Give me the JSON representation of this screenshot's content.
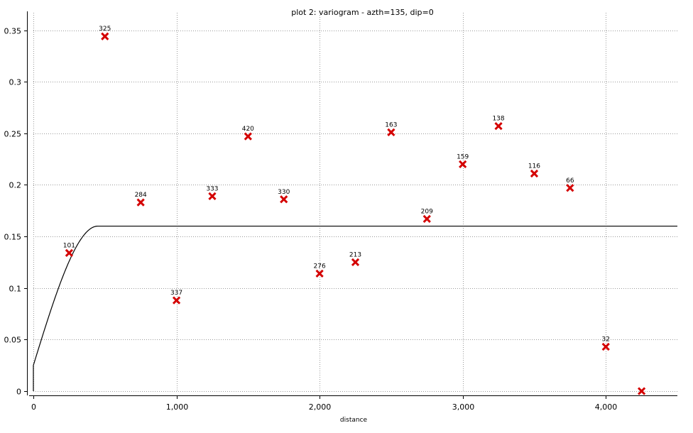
{
  "chart_data": {
    "type": "scatter",
    "title": "plot 2:  variogram - azth=135, dip=0",
    "xlabel": "distance",
    "ylabel": "",
    "xlim": [
      0,
      4500
    ],
    "ylim": [
      0,
      0.36
    ],
    "grid": true,
    "x_ticks": [
      0,
      1000,
      2000,
      3000,
      4000
    ],
    "x_tick_labels": [
      "0",
      "1,000",
      "2,000",
      "3,000",
      "4,000"
    ],
    "y_ticks": [
      0,
      0.05,
      0.1,
      0.15,
      0.2,
      0.25,
      0.3,
      0.35
    ],
    "y_tick_labels": [
      "0",
      "0.05",
      "0.1",
      "0.15",
      "0.2",
      "0.25",
      "0.3",
      "0.35"
    ],
    "series": [
      {
        "marker": "x",
        "color": "#d40000",
        "points": [
          {
            "x": 250,
            "y": 0.134,
            "label": "101"
          },
          {
            "x": 500,
            "y": 0.344,
            "label": "325"
          },
          {
            "x": 750,
            "y": 0.183,
            "label": "284"
          },
          {
            "x": 1000,
            "y": 0.088,
            "label": "337"
          },
          {
            "x": 1250,
            "y": 0.189,
            "label": "333"
          },
          {
            "x": 1500,
            "y": 0.247,
            "label": "420"
          },
          {
            "x": 1750,
            "y": 0.186,
            "label": "330"
          },
          {
            "x": 2000,
            "y": 0.114,
            "label": "276"
          },
          {
            "x": 2250,
            "y": 0.125,
            "label": "213"
          },
          {
            "x": 2500,
            "y": 0.251,
            "label": "163"
          },
          {
            "x": 2750,
            "y": 0.167,
            "label": "209"
          },
          {
            "x": 3000,
            "y": 0.22,
            "label": "159"
          },
          {
            "x": 3250,
            "y": 0.257,
            "label": "138"
          },
          {
            "x": 3500,
            "y": 0.211,
            "label": "116"
          },
          {
            "x": 3750,
            "y": 0.197,
            "label": "66"
          },
          {
            "x": 4000,
            "y": 0.043,
            "label": "32"
          },
          {
            "x": 4250,
            "y": 0.0,
            "label": ""
          }
        ]
      },
      {
        "type": "line",
        "model": "spherical",
        "color": "#000000",
        "nugget": 0.025,
        "sill": 0.16,
        "range": 450,
        "x_start": 0,
        "x_end": 4500
      }
    ]
  }
}
